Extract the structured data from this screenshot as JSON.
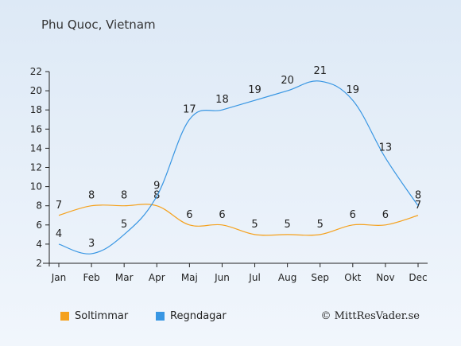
{
  "chart_data": {
    "type": "line",
    "title": "Phu Quoc, Vietnam",
    "categories": [
      "Jan",
      "Feb",
      "Mar",
      "Apr",
      "Maj",
      "Jun",
      "Jul",
      "Aug",
      "Sep",
      "Okt",
      "Nov",
      "Dec"
    ],
    "ylim": [
      2,
      22
    ],
    "yticks": [
      2,
      4,
      6,
      8,
      10,
      12,
      14,
      16,
      18,
      20,
      22
    ],
    "grid": false,
    "legend_position": "bottom-left",
    "series": [
      {
        "name": "Soltimmar",
        "color": "#f5a11c",
        "values": [
          7,
          8,
          8,
          8,
          6,
          6,
          5,
          5,
          5,
          6,
          6,
          7
        ]
      },
      {
        "name": "Regndagar",
        "color": "#3896e3",
        "values": [
          4,
          3,
          5,
          9,
          17,
          18,
          19,
          20,
          21,
          19,
          13,
          8
        ]
      }
    ]
  },
  "copyright": "© MittResVader.se"
}
